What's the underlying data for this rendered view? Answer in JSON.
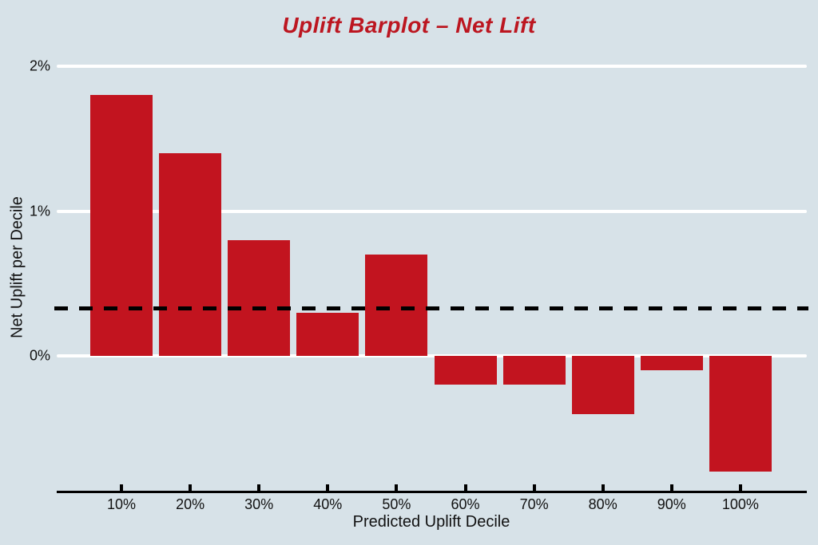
{
  "chart_data": {
    "type": "bar",
    "title": "Uplift Barplot – Net Lift",
    "xlabel": "Predicted Uplift Decile",
    "ylabel": "Net Uplift per Decile",
    "categories": [
      "10%",
      "20%",
      "30%",
      "40%",
      "50%",
      "60%",
      "70%",
      "80%",
      "90%",
      "100%"
    ],
    "values": [
      1.8,
      1.4,
      0.8,
      0.3,
      0.7,
      -0.2,
      -0.2,
      -0.4,
      -0.1,
      -0.8
    ],
    "yticks": [
      {
        "value": 0,
        "label": "0%"
      },
      {
        "value": 1,
        "label": "1%"
      },
      {
        "value": 2,
        "label": "2%"
      }
    ],
    "ylim": [
      -0.95,
      2.05
    ],
    "reference_line": {
      "value": 0.33,
      "style": "dashed",
      "color": "#000000"
    },
    "legend": "none",
    "grid": "horizontal",
    "colors": {
      "background": "#d7e2e8",
      "bar": "#c2141f",
      "title": "#bc1620",
      "gridline": "#ffffff",
      "axis": "#000000",
      "text": "#111111"
    }
  }
}
